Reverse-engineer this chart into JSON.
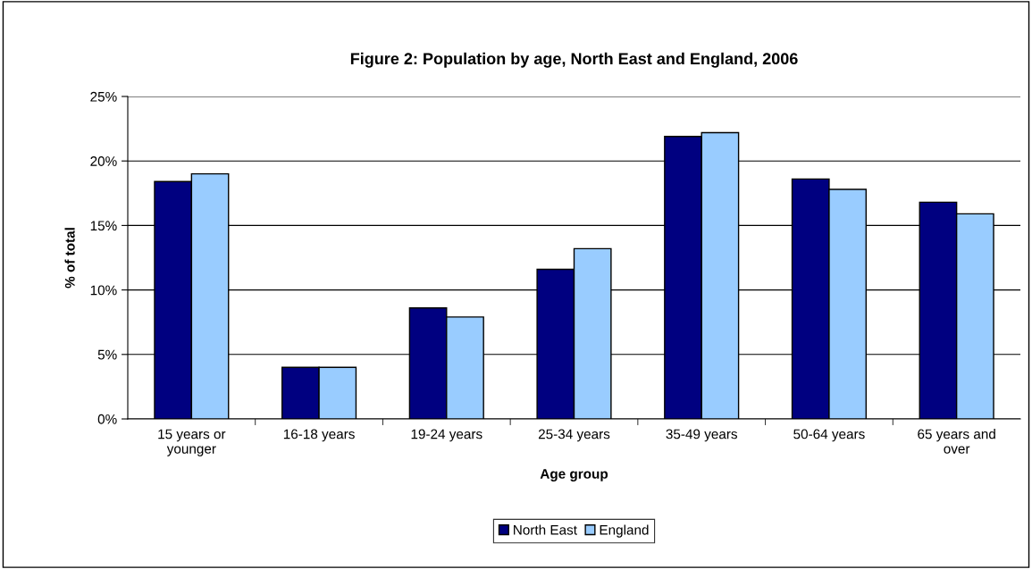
{
  "chart_data": {
    "type": "bar",
    "title": "Figure 2: Population by age, North East and England, 2006",
    "xlabel": "Age group",
    "ylabel": "% of total",
    "categories": [
      "15 years or\nyounger",
      "16-18 years",
      "19-24 years",
      "25-34 years",
      "35-49 years",
      "50-64 years",
      "65 years and\nover"
    ],
    "series": [
      {
        "name": "North East",
        "color": "#000080",
        "values": [
          18.4,
          4.0,
          8.6,
          11.6,
          21.9,
          18.6,
          16.8
        ]
      },
      {
        "name": "England",
        "color": "#99ccff",
        "values": [
          19.0,
          4.0,
          7.9,
          13.2,
          22.2,
          17.8,
          15.9
        ]
      }
    ],
    "ylim": [
      0,
      25
    ],
    "yticks": [
      {
        "value": 0,
        "label": "0%"
      },
      {
        "value": 5,
        "label": "5%"
      },
      {
        "value": 10,
        "label": "10%"
      },
      {
        "value": 15,
        "label": "15%"
      },
      {
        "value": 20,
        "label": "20%"
      },
      {
        "value": 25,
        "label": "25%"
      }
    ],
    "grid": "y",
    "legend": "bottom"
  }
}
